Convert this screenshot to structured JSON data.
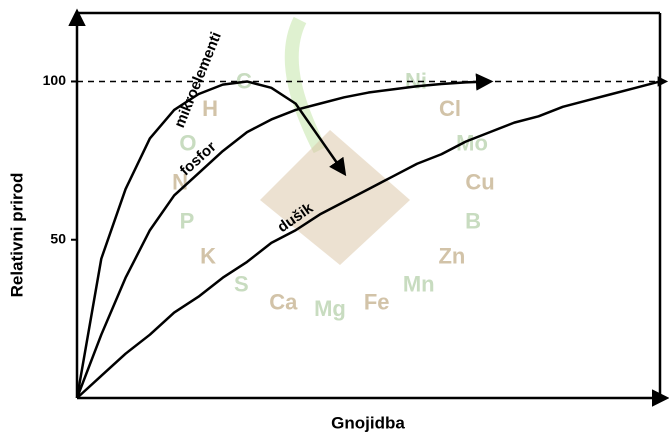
{
  "chart_data": {
    "type": "line",
    "x_label": "Gnojidba",
    "y_label": "Relativni prirod",
    "categories": [
      null,
      null,
      null,
      null,
      null,
      null,
      null,
      null,
      null,
      null,
      null,
      null,
      null,
      null,
      null,
      null,
      null,
      null,
      null,
      null,
      null,
      null,
      null,
      null,
      null
    ],
    "ylim": [
      0,
      121
    ],
    "yticks": [
      50,
      100
    ],
    "reference_line": 100,
    "series": [
      {
        "name": "mikroelementi",
        "color": "#000000",
        "arrow": true,
        "values": [
          0,
          44,
          66,
          82,
          91,
          96,
          99,
          100,
          98,
          93,
          82,
          71,
          null,
          null,
          null,
          null,
          null,
          null,
          null,
          null,
          null,
          null,
          null,
          null,
          null
        ]
      },
      {
        "name": "fosfor",
        "color": "#000000",
        "arrow": true,
        "values": [
          0,
          20,
          38,
          53,
          64,
          71,
          78,
          84,
          88,
          91,
          93,
          95,
          96.5,
          97.5,
          98.5,
          99.2,
          99.7,
          100,
          null,
          null,
          null,
          null,
          null,
          null,
          null
        ]
      },
      {
        "name": "dušik",
        "color": "#000000",
        "arrow": false,
        "values": [
          0,
          7,
          14,
          20,
          27,
          32,
          38,
          43,
          49,
          53,
          58,
          62,
          66,
          70,
          74,
          77,
          81,
          84,
          87,
          89,
          92,
          94,
          96,
          98,
          100
        ]
      }
    ],
    "watermark": [
      "C",
      "H",
      "O",
      "N",
      "P",
      "K",
      "S",
      "Ca",
      "Mg",
      "Fe",
      "Mn",
      "Zn",
      "B",
      "Cu",
      "Mo",
      "Cl",
      "Ni"
    ]
  }
}
